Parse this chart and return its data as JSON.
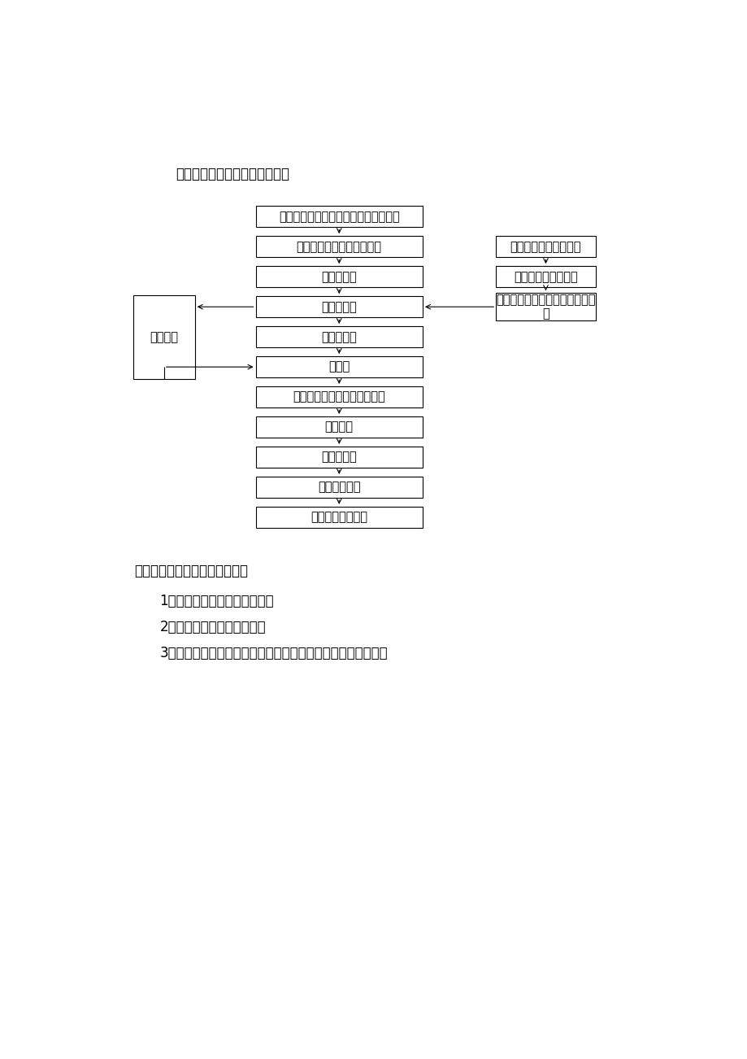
{
  "title": "一、预应力空心板施工流程图：",
  "bg_color": "#ffffff",
  "text_color": "#000000",
  "box_edge_color": "#000000",
  "box_fill_color": "#ffffff",
  "font_size_title": 12,
  "font_size_box": 10.5,
  "font_size_text": 12,
  "section2_title": "二、监理机构实施的控制要点：",
  "items": [
    "1、审查专业施工单位的资质；",
    "2、审核专项施工技术方案；",
    "3、对进场的预应力筋、轻质管等原材料，严格实行材料报审制"
  ],
  "main_flow": [
    "支板底模，铺放板底铁，底铁分布钢筋",
    "绑扎空心板肋梁箍筋及上铁",
    "安装定位筋",
    "穿预应力经",
    "铺放轻质管",
    "支端模",
    "采取抗浮措施及绑扎板面钢筋",
    "隐检验收",
    "浇筑混凝土",
    "张拉预应力筋",
    "预应力筋端部处理"
  ],
  "right_flow": [
    "预应力筋工厂定长下料",
    "固定端挤压锚具组装",
    "运至现场，并垂直运输至铺放部\n位"
  ],
  "left_box": "节点安装"
}
